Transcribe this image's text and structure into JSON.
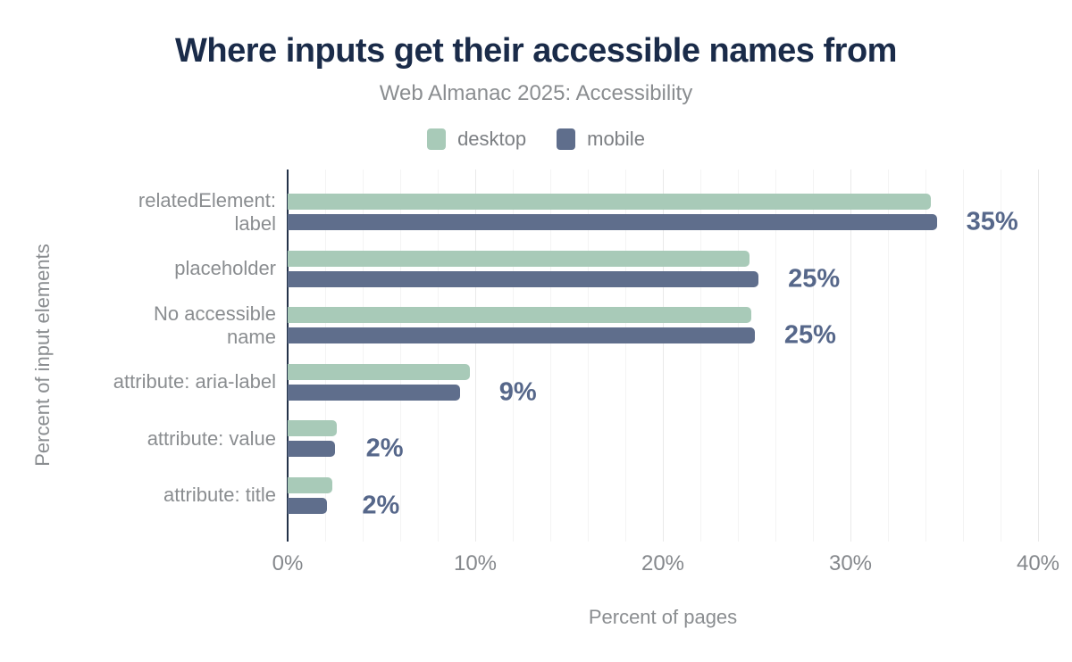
{
  "header": {
    "title": "Where inputs get their accessible names from",
    "subtitle": "Web Almanac 2025: Accessibility"
  },
  "legend": {
    "items": [
      {
        "label": "desktop",
        "color": "#a8cab8"
      },
      {
        "label": "mobile",
        "color": "#5f6e8c"
      }
    ]
  },
  "chart_data": {
    "type": "bar",
    "orientation": "horizontal",
    "title": "Where inputs get their accessible names from",
    "subtitle": "Web Almanac 2025: Accessibility",
    "categories": [
      "relatedElement: label",
      "placeholder",
      "No accessible name",
      "attribute: aria-label",
      "attribute: value",
      "attribute: title"
    ],
    "categories_lines": [
      [
        "relatedElement:",
        "label"
      ],
      [
        "placeholder"
      ],
      [
        "No accessible",
        "name"
      ],
      [
        "attribute: aria-label"
      ],
      [
        "attribute: value"
      ],
      [
        "attribute: title"
      ]
    ],
    "series": [
      {
        "name": "desktop",
        "color": "#a8cab8",
        "values": [
          34.3,
          24.6,
          24.7,
          9.7,
          2.6,
          2.4
        ]
      },
      {
        "name": "mobile",
        "color": "#5f6e8c",
        "values": [
          34.6,
          25.1,
          24.9,
          9.2,
          2.5,
          2.1
        ]
      }
    ],
    "value_labels": [
      "35%",
      "25%",
      "25%",
      "9%",
      "2%",
      "2%"
    ],
    "xlabel": "Percent of pages",
    "ylabel": "Percent of input elements",
    "xlim": [
      0,
      40
    ],
    "x_ticks": [
      {
        "label": "0%",
        "value": 0
      },
      {
        "label": "10%",
        "value": 10
      },
      {
        "label": "20%",
        "value": 20
      },
      {
        "label": "30%",
        "value": 30
      },
      {
        "label": "40%",
        "value": 40
      }
    ],
    "grid": {
      "minor_step_percent": 2,
      "major_step_percent": 10,
      "direction": "vertical"
    }
  },
  "colors": {
    "title": "#1a2b49",
    "muted_text": "#8a8d90",
    "value_label": "#56678a",
    "axis_line": "#243249",
    "gridline_minor": "#f4f4f4",
    "gridline_major": "#e9e9e9",
    "background": "#ffffff"
  }
}
